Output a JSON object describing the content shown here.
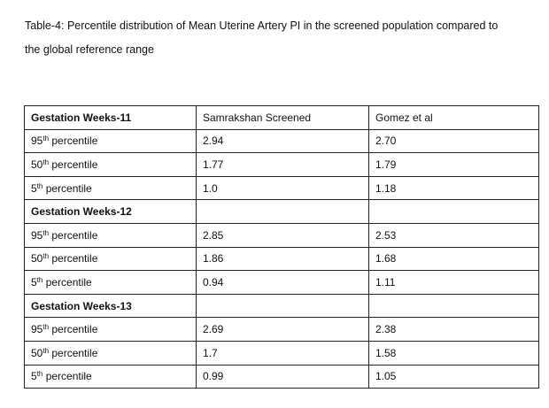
{
  "caption": [
    "Table-4: Percentile distribution of Mean Uterine Artery PI in the screened population compared to",
    "the global reference range"
  ],
  "table": {
    "columns": [
      "Samrakshan Screened",
      "Gomez et al"
    ],
    "groups": [
      {
        "title": "Gestation Weeks-11",
        "rows": [
          {
            "label": [
              "95",
              "th",
              " percentile"
            ],
            "values": [
              "2.94",
              "2.70"
            ]
          },
          {
            "label": [
              "50",
              "th",
              " percentile"
            ],
            "values": [
              "1.77",
              "1.79"
            ]
          },
          {
            "label": [
              "5",
              "th",
              " percentile"
            ],
            "values": [
              "1.0",
              "1.18"
            ]
          }
        ]
      },
      {
        "title": "Gestation Weeks-12",
        "rows": [
          {
            "label": [
              "95",
              "th",
              " percentile"
            ],
            "values": [
              "2.85",
              "2.53"
            ]
          },
          {
            "label": [
              "50",
              "th",
              " percentile"
            ],
            "values": [
              "1.86",
              "1.68"
            ]
          },
          {
            "label": [
              "5",
              "th",
              " percentile"
            ],
            "values": [
              "0.94",
              "1.11"
            ]
          }
        ]
      },
      {
        "title": "Gestation Weeks-13",
        "rows": [
          {
            "label": [
              "95",
              "th",
              " percentile"
            ],
            "values": [
              "2.69",
              "2.38"
            ]
          },
          {
            "label": [
              "50",
              "th",
              " percentile"
            ],
            "values": [
              "1.7",
              "1.58"
            ]
          },
          {
            "label": [
              "5",
              "th",
              " percentile"
            ],
            "values": [
              "0.99",
              "1.05"
            ]
          }
        ]
      }
    ]
  }
}
